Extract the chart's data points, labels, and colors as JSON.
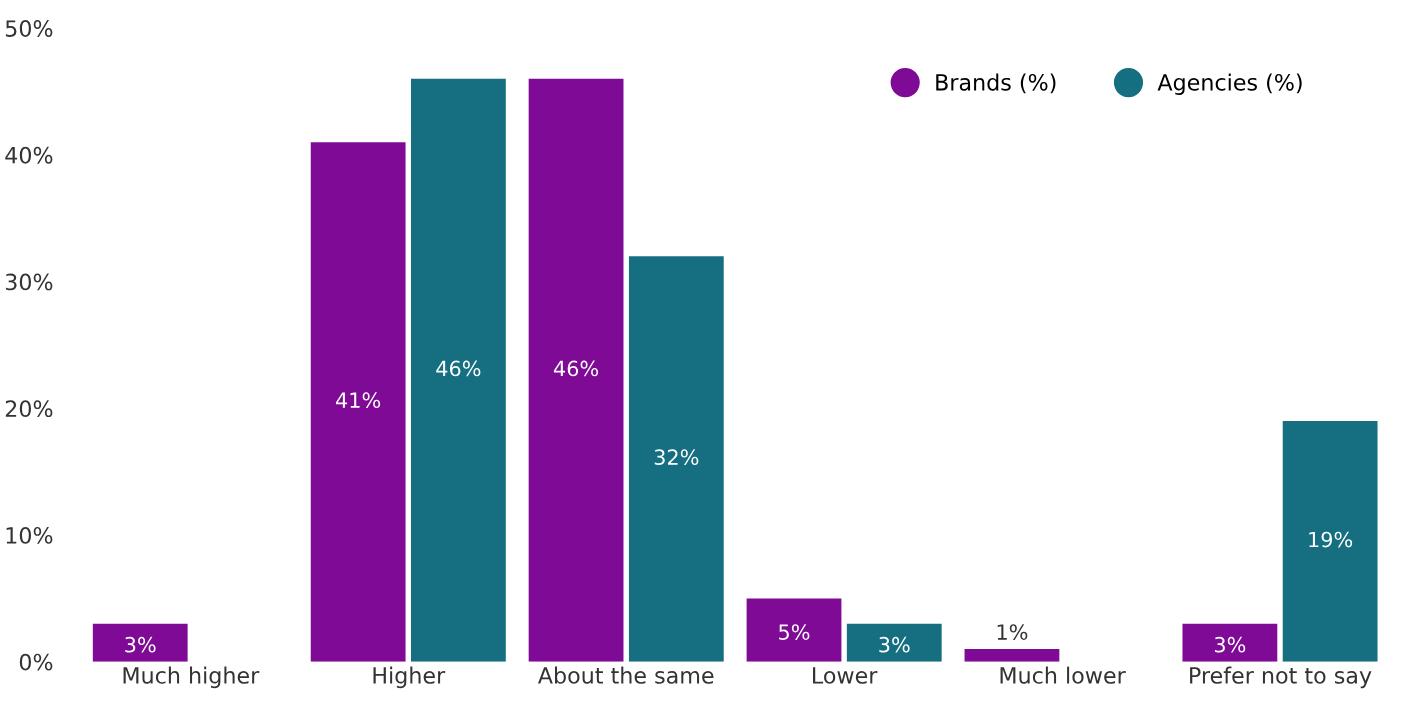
{
  "chart_data": {
    "type": "bar",
    "categories": [
      "Much higher",
      "Higher",
      "About the same",
      "Lower",
      "Much lower",
      "Prefer not to say"
    ],
    "series": [
      {
        "name": "Brands (%)",
        "color": "#7f0a96",
        "values": [
          3,
          41,
          46,
          5,
          1,
          3
        ]
      },
      {
        "name": "Agencies (%)",
        "color": "#156f80",
        "values": [
          null,
          46,
          32,
          3,
          null,
          19
        ]
      }
    ],
    "ylim": [
      0,
      50
    ],
    "yticks": [
      {
        "value": 0,
        "label": "0%"
      },
      {
        "value": 10,
        "label": "10%"
      },
      {
        "value": 20,
        "label": "20%"
      },
      {
        "value": 30,
        "label": "30%"
      },
      {
        "value": 40,
        "label": "40%"
      },
      {
        "value": 50,
        "label": "50%"
      }
    ],
    "value_labels": [
      [
        "3%",
        "41%",
        "46%",
        "5%",
        "1%",
        "3%"
      ],
      [
        null,
        "46%",
        "32%",
        "3%",
        null,
        "19%"
      ]
    ],
    "grid": false,
    "legend": "top right"
  }
}
